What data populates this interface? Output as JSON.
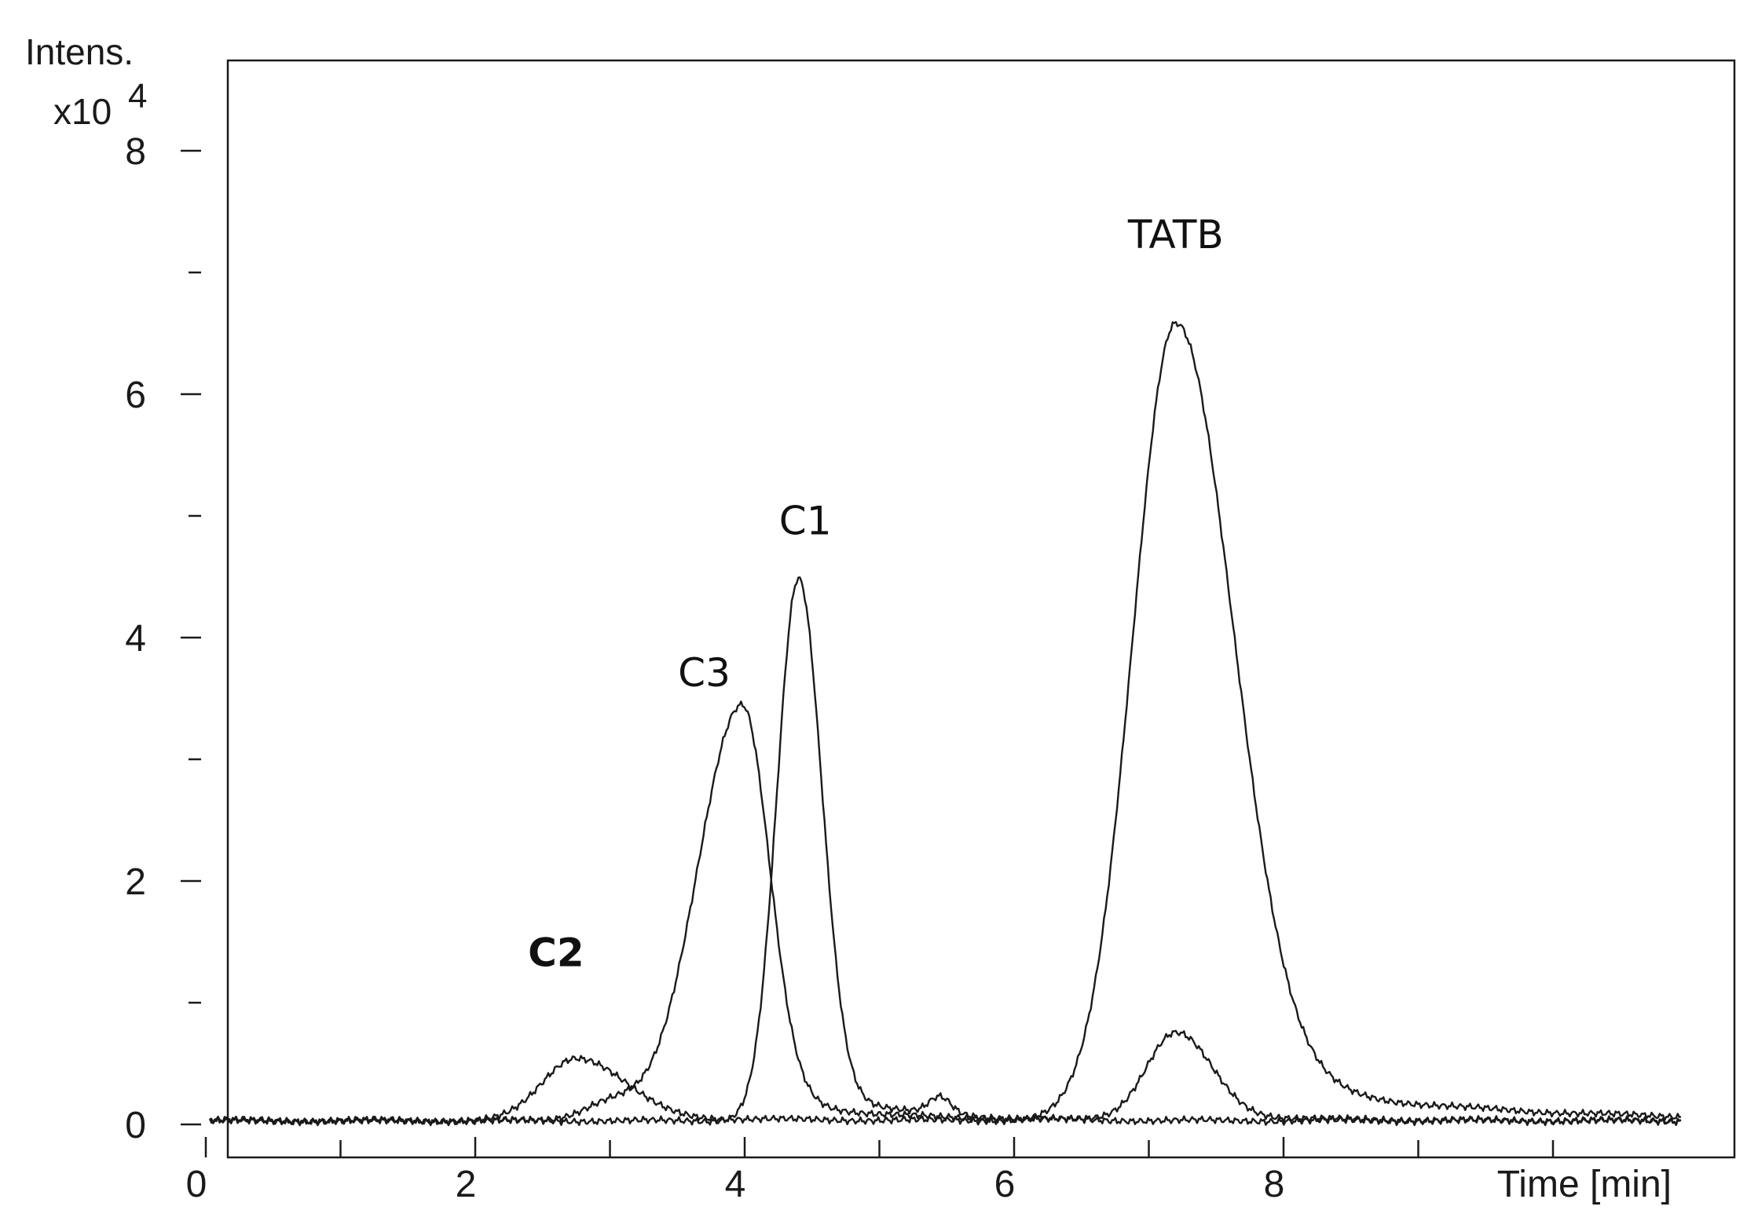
{
  "chart_data": {
    "type": "line",
    "ylabel": "Intens.",
    "ylabel_multiplier": "x10",
    "ylabel_exponent": "4",
    "xlabel": "Time [min]",
    "xlim": [
      0,
      11.1
    ],
    "ylim": [
      -0.2,
      8.8
    ],
    "y_ticks_major": [
      0,
      2,
      4,
      6,
      8
    ],
    "y_tick_labels": [
      "0",
      "2",
      "4",
      "6",
      "8"
    ],
    "y_ticks_minor": [
      1,
      3,
      5,
      7
    ],
    "x_ticks_major": [
      0,
      2,
      4,
      6,
      8
    ],
    "x_tick_labels": [
      "0",
      "2",
      "4",
      "6",
      "8"
    ],
    "x_ticks_minor": [
      1,
      3,
      5,
      7,
      9,
      10
    ],
    "grid": false,
    "legend": "none",
    "annotations": [
      {
        "text": "TATB",
        "x": 7.2,
        "y": 7.2,
        "bold": false
      },
      {
        "text": "C1",
        "x": 4.45,
        "y": 4.85,
        "bold": false
      },
      {
        "text": "C3",
        "x": 3.7,
        "y": 3.6,
        "bold": false
      },
      {
        "text": "C2",
        "x": 2.6,
        "y": 1.3,
        "bold": true
      }
    ],
    "series": [
      {
        "peaks": [
          {
            "center": 7.2,
            "height": 6.55,
            "left_width": 0.32,
            "right_width": 0.42
          },
          {
            "center": 2.75,
            "height": 0.52,
            "left_width": 0.25,
            "right_width": 0.35
          }
        ]
      },
      {
        "peaks": [
          {
            "center": 4.4,
            "height": 4.45,
            "left_width": 0.16,
            "right_width": 0.17
          },
          {
            "center": 7.2,
            "height": 0.72,
            "left_width": 0.22,
            "right_width": 0.26
          },
          {
            "center": 5.45,
            "height": 0.14,
            "left_width": 0.08,
            "right_width": 0.08
          }
        ]
      },
      {
        "peaks": [
          {
            "center": 3.98,
            "height": 3.42,
            "left_width": 0.33,
            "right_width": 0.2
          },
          {
            "center": 3.0,
            "height": 0.15,
            "left_width": 0.2,
            "right_width": 0.2
          }
        ]
      }
    ]
  }
}
